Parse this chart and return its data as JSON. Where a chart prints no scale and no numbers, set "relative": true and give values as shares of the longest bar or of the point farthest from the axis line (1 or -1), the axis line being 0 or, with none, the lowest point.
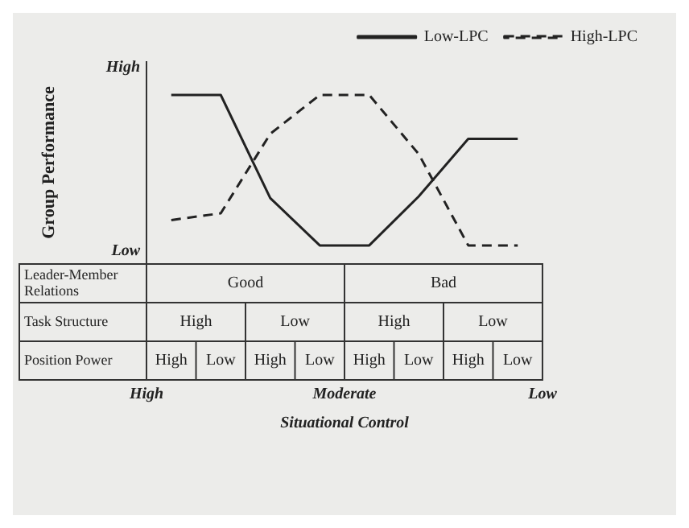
{
  "chart_data": {
    "type": "line",
    "relative": true,
    "ylabel": "Group Performance",
    "categories": [
      null,
      null,
      null,
      null,
      null,
      null,
      null,
      null
    ],
    "series": [
      {
        "name": "Low-LPC",
        "color": "#222222",
        "line_style": "solid",
        "values": [
          1,
          1,
          0.39,
          0.11,
          0.11,
          0.4,
          0.74,
          0.74
        ]
      },
      {
        "name": "High-LPC",
        "color": "#222222",
        "line_style": "dashed",
        "values": [
          0.26,
          0.3,
          0.77,
          1,
          1,
          0.65,
          0.11,
          0.11
        ]
      }
    ],
    "annotations": [
      "Leader-Member Relations",
      "Good",
      "Bad",
      "Task Structure",
      "High",
      "Low",
      "High",
      "Low",
      "Position Power",
      "High",
      "Low",
      "High",
      "Low",
      "High",
      "Low",
      "High",
      "Low",
      "High",
      "Low",
      "High",
      "Moderate",
      "Low",
      "Situational Control"
    ],
    "legend": "top right",
    "marker": "none",
    "grid": false
  }
}
